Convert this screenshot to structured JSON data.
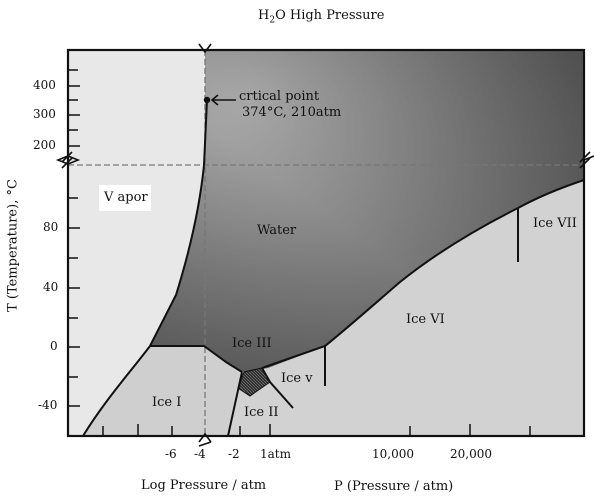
{
  "title_main": "H",
  "title_sub": "2",
  "title_rest": "O High Pressure",
  "ylabel": "T (Temperature), °C",
  "xlabel_left": "Log Pressure / atm",
  "xlabel_right": "P (Pressure / atm)",
  "y_ticks_upper": [
    "400",
    "300",
    "200"
  ],
  "y_ticks_lower": [
    "80",
    "40",
    "0",
    "-40"
  ],
  "x_ticks_left": [
    "-6",
    "-4",
    "-2",
    "1atm"
  ],
  "x_ticks_right": [
    "10,000",
    "20,000"
  ],
  "critical_label": "crtical point",
  "critical_value": "374°C, 210atm",
  "regions": {
    "vapor": "V apor",
    "water": "Water",
    "ice1": "Ice I",
    "ice2": "Ice II",
    "ice3": "Ice III",
    "ice5": "Ice v",
    "ice6": "Ice VI",
    "ice7": "Ice VII"
  },
  "colors": {
    "vapor_fill": "#e9e9e9",
    "ice_fill": "#cdcdcd",
    "water_dark": "#4d4d4d",
    "water_light": "#b9b9b9",
    "ice5_fill": "#3a3a3a",
    "line": "#111111"
  }
}
